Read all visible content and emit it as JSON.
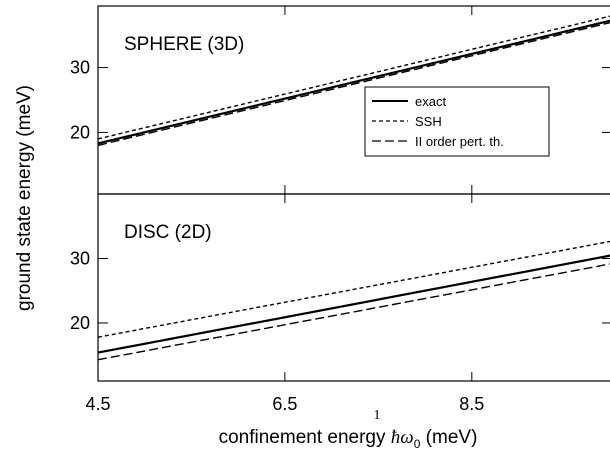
{
  "chart_data": {
    "type": "line",
    "ylabel": "ground state energy (meV)",
    "xlabel": {
      "prefix": "confinement energy ",
      "symbol": "ħω",
      "subscript": "0",
      "suffix": " (meV)"
    },
    "stray_mark": "1",
    "x_range": [
      4.5,
      10
    ],
    "x_ticks": [
      4.5,
      6.5,
      8.5
    ],
    "legend": {
      "placement": "inside-right of top panel",
      "entries": [
        {
          "name": "exact",
          "style": "solid"
        },
        {
          "name": "SSH",
          "style": "dashed-short"
        },
        {
          "name": "II order pert. th.",
          "style": "dashed-long"
        }
      ]
    },
    "panels": [
      {
        "label": "SPHERE (3D)",
        "y_range": [
          10.5,
          39.5
        ],
        "y_ticks": [
          20,
          30
        ],
        "series": [
          {
            "name": "exact",
            "x": [
              4.5,
              10
            ],
            "y": [
              18.3,
              37.3
            ]
          },
          {
            "name": "SSH",
            "x": [
              4.5,
              10
            ],
            "y": [
              19.0,
              38.0
            ]
          },
          {
            "name": "II order pert. th.",
            "x": [
              4.5,
              10
            ],
            "y": [
              18.0,
              37.0
            ]
          }
        ]
      },
      {
        "label": "DISC (2D)",
        "y_range": [
          11.0,
          40.0
        ],
        "y_ticks": [
          20,
          30
        ],
        "series": [
          {
            "name": "exact",
            "x": [
              4.5,
              10
            ],
            "y": [
              15.4,
              30.5
            ]
          },
          {
            "name": "SSH",
            "x": [
              4.5,
              10
            ],
            "y": [
              17.8,
              32.7
            ]
          },
          {
            "name": "II order pert. th.",
            "x": [
              4.5,
              10
            ],
            "y": [
              14.3,
              29.2
            ]
          }
        ]
      }
    ]
  }
}
